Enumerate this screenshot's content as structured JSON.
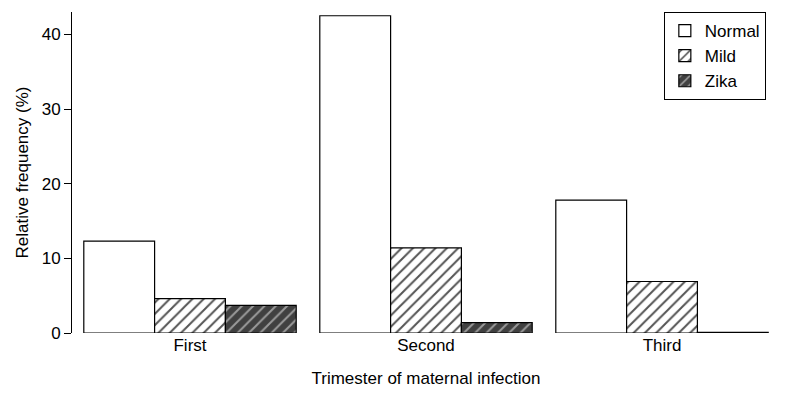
{
  "chart_data": {
    "type": "bar",
    "x_label": "Trimester of maternal infection",
    "y_label": "Relative frequency (%)",
    "categories": [
      "First",
      "Second",
      "Third"
    ],
    "series": [
      {
        "name": "Normal",
        "color": "#ffffff",
        "marker": "solid",
        "values": [
          12.3,
          42.5,
          17.8
        ]
      },
      {
        "name": "Mild",
        "color": "#ffffff",
        "marker": "hatch",
        "values": [
          4.6,
          11.4,
          6.9
        ]
      },
      {
        "name": "Zika",
        "color": "#404040",
        "marker": "hatch",
        "values": [
          3.7,
          1.4,
          0.1
        ]
      }
    ],
    "ylim": [
      0,
      43
    ],
    "yticks": [
      0,
      10,
      20,
      30,
      40
    ],
    "grid": false,
    "legend": "top right"
  }
}
